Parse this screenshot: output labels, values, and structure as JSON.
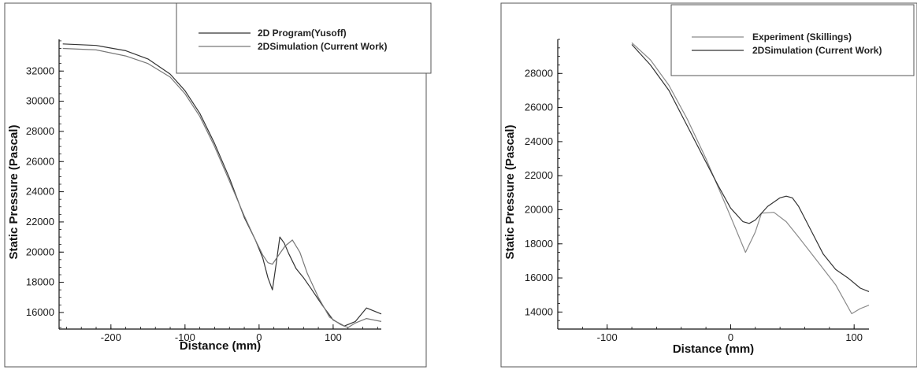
{
  "chart_data": [
    {
      "type": "line",
      "title": "",
      "xlabel": "Distance (mm)",
      "ylabel": "Static Pressure (Pascal)",
      "xlim": [
        -270,
        165
      ],
      "ylim": [
        14900,
        34100
      ],
      "xticks": [
        -200,
        -100,
        0,
        100
      ],
      "yticks": [
        16000,
        18000,
        20000,
        22000,
        24000,
        26000,
        28000,
        30000,
        32000
      ],
      "legend_position": "top-right",
      "series": [
        {
          "name": "2D Program(Yusoff)",
          "color": "#333333",
          "x": [
            -265,
            -220,
            -180,
            -150,
            -120,
            -100,
            -80,
            -60,
            -40,
            -20,
            -5,
            5,
            12,
            18,
            23,
            28,
            34,
            40,
            50,
            60,
            70,
            85,
            100,
            115,
            130,
            145,
            165
          ],
          "y": [
            33800,
            33700,
            33350,
            32800,
            31800,
            30700,
            29200,
            27200,
            24900,
            22300,
            20800,
            19600,
            18300,
            17500,
            19200,
            21000,
            20600,
            19900,
            18900,
            18300,
            17600,
            16500,
            15500,
            15100,
            15400,
            16300,
            15900
          ]
        },
        {
          "name": "2DSimulation (Current Work)",
          "color": "#777777",
          "x": [
            -265,
            -220,
            -180,
            -150,
            -120,
            -100,
            -80,
            -60,
            -40,
            -20,
            -5,
            5,
            12,
            18,
            25,
            35,
            45,
            55,
            65,
            80,
            95,
            110,
            120,
            130,
            145,
            165
          ],
          "y": [
            33500,
            33400,
            33000,
            32500,
            31600,
            30500,
            29000,
            27000,
            24700,
            22400,
            20800,
            19800,
            19300,
            19200,
            19700,
            20400,
            20800,
            20000,
            18600,
            17000,
            15700,
            15200,
            15000,
            15300,
            15600,
            15400
          ]
        }
      ],
      "legend": [
        "2D Program(Yusoff)",
        "2DSimulation (Current Work)"
      ]
    },
    {
      "type": "line",
      "title": "",
      "xlabel": "Distance (mm)",
      "ylabel": "Static Pressure (Pascal)",
      "xlim": [
        -140,
        112
      ],
      "ylim": [
        13000,
        30000
      ],
      "xticks": [
        -100,
        0,
        100
      ],
      "yticks": [
        14000,
        16000,
        18000,
        20000,
        22000,
        24000,
        26000,
        28000
      ],
      "legend_position": "top-right",
      "series": [
        {
          "name": "Experiment (Skillings)",
          "color": "#8a8a8a",
          "x": [
            -80,
            -65,
            -50,
            -35,
            -20,
            -10,
            0,
            12,
            20,
            25,
            35,
            45,
            55,
            70,
            85,
            98,
            105,
            112
          ],
          "y": [
            29800,
            28800,
            27300,
            25300,
            23000,
            21300,
            19600,
            17500,
            18700,
            19800,
            19850,
            19300,
            18400,
            17000,
            15600,
            13900,
            14200,
            14400
          ]
        },
        {
          "name": "2DSimulation (Current Work)",
          "color": "#333333",
          "x": [
            -80,
            -65,
            -50,
            -35,
            -20,
            -10,
            0,
            10,
            15,
            20,
            30,
            40,
            45,
            50,
            55,
            65,
            75,
            85,
            95,
            105,
            112
          ],
          "y": [
            29700,
            28500,
            27000,
            24900,
            22800,
            21400,
            20100,
            19300,
            19200,
            19400,
            20200,
            20700,
            20800,
            20700,
            20200,
            18800,
            17400,
            16500,
            16000,
            15400,
            15200
          ]
        }
      ],
      "legend": [
        "Experiment (Skillings)",
        "2DSimulation (Current Work)"
      ]
    }
  ]
}
